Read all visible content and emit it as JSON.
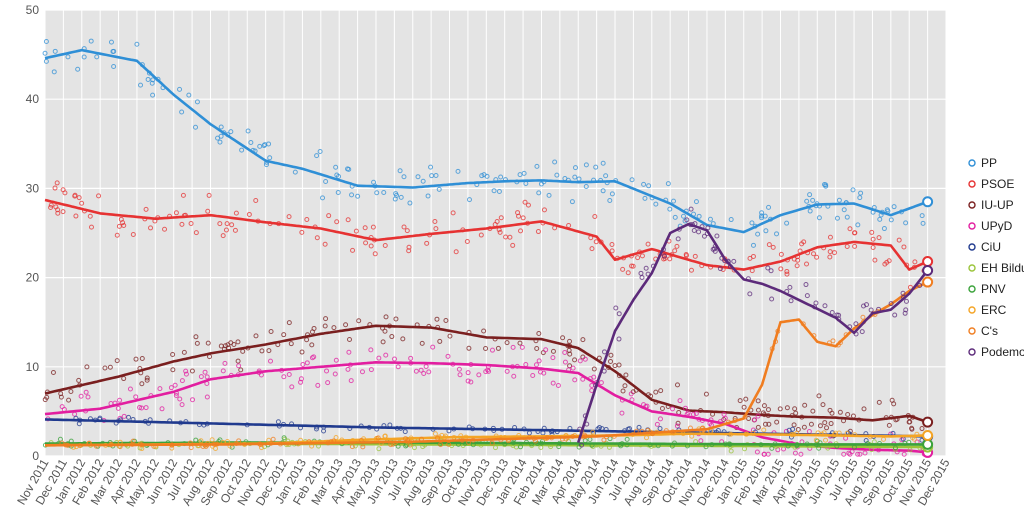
{
  "chart_data": {
    "type": "line",
    "title": "",
    "xlabel": "",
    "ylabel": "",
    "ylim": [
      0,
      50
    ],
    "xlim": [
      "2011-11",
      "2015-12"
    ],
    "grid": true,
    "background": "#e4e4e4",
    "legend_position": "right",
    "y_ticks": [
      0,
      10,
      20,
      30,
      40,
      50
    ],
    "x_ticks": [
      "Nov 2011",
      "Dec 2011",
      "Jan 2012",
      "Feb 2012",
      "Mar 2012",
      "Apr 2012",
      "May 2012",
      "Jun 2012",
      "Jul 2012",
      "Aug 2012",
      "Sep 2012",
      "Oct 2012",
      "Nov 2012",
      "Dec 2012",
      "Jan 2013",
      "Feb 2013",
      "Mar 2013",
      "Apr 2013",
      "May 2013",
      "Jun 2013",
      "Jul 2013",
      "Aug 2013",
      "Sep 2013",
      "Oct 2013",
      "Nov 2013",
      "Dec 2013",
      "Jan 2014",
      "Feb 2014",
      "Mar 2014",
      "Apr 2014",
      "May 2014",
      "Jun 2014",
      "Jul 2014",
      "Aug 2014",
      "Sep 2014",
      "Oct 2014",
      "Nov 2014",
      "Dec 2014",
      "Jan 2015",
      "Feb 2015",
      "Mar 2015",
      "Apr 2015",
      "May 2015",
      "Jun 2015",
      "Jul 2015",
      "Aug 2015",
      "Sep 2015",
      "Oct 2015",
      "Nov 2015",
      "Dec 2015"
    ],
    "series": [
      {
        "name": "PP",
        "color": "#2f8fd6",
        "x": [
          0,
          2,
          5,
          7,
          9,
          12,
          14,
          17,
          20,
          23,
          25,
          27,
          29,
          31,
          34,
          36,
          38,
          40,
          42,
          44,
          46,
          48
        ],
        "values": [
          44.6,
          45.5,
          44.3,
          40.5,
          37.2,
          33.1,
          32.2,
          30.3,
          30.1,
          30.6,
          30.8,
          30.9,
          30.7,
          30.8,
          28.3,
          25.9,
          25.1,
          27.0,
          28.2,
          28.3,
          27.0,
          28.5
        ]
      },
      {
        "name": "PSOE",
        "color": "#e63232",
        "x": [
          0,
          3,
          6,
          9,
          12,
          15,
          18,
          21,
          24,
          27,
          30,
          31,
          33,
          36,
          38,
          40,
          42,
          44,
          46,
          47,
          48
        ],
        "values": [
          28.7,
          27.2,
          26.6,
          27.0,
          26.2,
          25.5,
          24.2,
          24.9,
          25.5,
          26.3,
          24.6,
          22.0,
          23.2,
          21.4,
          20.9,
          21.8,
          23.4,
          24.0,
          23.6,
          20.9,
          21.8
        ]
      },
      {
        "name": "IU-UP",
        "color": "#7a1f1f",
        "x": [
          0,
          4,
          7,
          9,
          12,
          15,
          18,
          21,
          24,
          27,
          29,
          31,
          33,
          35,
          37,
          39,
          41,
          43,
          45,
          47,
          48
        ],
        "values": [
          7.0,
          8.9,
          10.6,
          11.5,
          12.5,
          13.7,
          14.6,
          14.4,
          13.3,
          13.1,
          12.1,
          9.5,
          6.3,
          5.1,
          4.9,
          4.6,
          4.4,
          4.3,
          4.0,
          4.5,
          3.8
        ]
      },
      {
        "name": "UPyD",
        "color": "#e21ea0",
        "x": [
          0,
          3,
          7,
          9,
          12,
          15,
          18,
          21,
          24,
          27,
          29,
          31,
          33,
          35,
          37,
          39,
          41,
          43,
          45,
          47,
          48
        ],
        "values": [
          4.7,
          5.3,
          7.2,
          8.6,
          9.5,
          10.0,
          10.5,
          10.4,
          10.2,
          9.8,
          9.3,
          6.8,
          5.0,
          4.4,
          3.6,
          2.1,
          1.3,
          0.9,
          0.7,
          0.6,
          0.4
        ]
      },
      {
        "name": "CiU",
        "color": "#203a8e",
        "x": [
          0,
          6,
          12,
          18,
          24,
          30,
          36,
          42,
          48
        ],
        "values": [
          4.1,
          3.8,
          3.5,
          3.2,
          3.0,
          2.8,
          2.6,
          2.4,
          2.2
        ]
      },
      {
        "name": "EH Bildu",
        "color": "#9ac43a",
        "x": [
          0,
          10,
          20,
          30,
          40,
          48
        ],
        "values": [
          1.3,
          1.4,
          1.3,
          1.2,
          1.1,
          1.0
        ]
      },
      {
        "name": "PNV",
        "color": "#3aa23a",
        "x": [
          0,
          10,
          20,
          30,
          40,
          48
        ],
        "values": [
          1.4,
          1.5,
          1.5,
          1.4,
          1.3,
          1.3
        ]
      },
      {
        "name": "ERC",
        "color": "#f4a425",
        "x": [
          0,
          12,
          17,
          22,
          27,
          31,
          35,
          40,
          46,
          48
        ],
        "values": [
          1.2,
          1.4,
          1.8,
          2.1,
          2.2,
          2.3,
          2.5,
          2.4,
          2.2,
          2.3
        ]
      },
      {
        "name": "C's",
        "color": "#f07d20",
        "x": [
          0,
          10,
          20,
          30,
          33,
          36,
          38,
          39,
          40,
          41,
          42,
          43,
          44,
          45,
          46,
          47,
          48
        ],
        "values": [
          1.2,
          1.3,
          1.6,
          2.2,
          2.6,
          3.0,
          4.2,
          8.0,
          15.0,
          15.3,
          12.8,
          12.3,
          14.3,
          15.8,
          17.0,
          18.5,
          19.5
        ]
      },
      {
        "name": "Podemos",
        "color": "#5c2a7a",
        "x": [
          29,
          30,
          31,
          32,
          33,
          34,
          35,
          36,
          37,
          38,
          39,
          40,
          41,
          42,
          43,
          44,
          45,
          46,
          47,
          48
        ],
        "values": [
          1.5,
          8.0,
          14.0,
          17.5,
          20.5,
          25.0,
          26.0,
          25.3,
          22.0,
          19.8,
          19.3,
          18.5,
          17.5,
          16.5,
          15.5,
          13.8,
          16.0,
          16.4,
          18.2,
          20.8
        ]
      }
    ]
  }
}
